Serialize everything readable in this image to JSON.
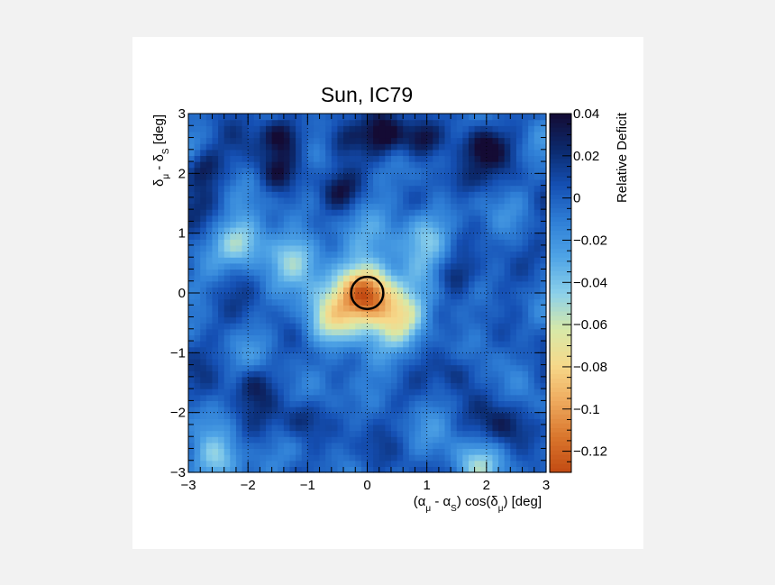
{
  "chart_data": {
    "type": "heatmap",
    "title": "Sun, IC79",
    "xlabel": "(α_μ - α_S) cos(δ_μ) [deg]",
    "ylabel": "δ_μ - δ_S [deg]",
    "zlabel": "Relative Deficit",
    "xlim": [
      -3,
      3
    ],
    "ylim": [
      -3,
      3
    ],
    "zlim": [
      -0.13,
      0.04
    ],
    "x_ticks": [
      -3,
      -2,
      -1,
      0,
      1,
      2,
      3
    ],
    "x_tick_labels": [
      "−3",
      "−2",
      "−1",
      "0",
      "1",
      "2",
      "3"
    ],
    "y_ticks": [
      -3,
      -2,
      -1,
      0,
      1,
      2,
      3
    ],
    "y_tick_labels": [
      "−3",
      "−2",
      "−1",
      "0",
      "1",
      "2",
      "3"
    ],
    "z_ticks": [
      0.04,
      0.02,
      0,
      -0.02,
      -0.04,
      -0.06,
      -0.08,
      -0.1,
      -0.12
    ],
    "z_tick_labels": [
      "0.04",
      "0.02",
      "0",
      "−0.02",
      "−0.04",
      "−0.06",
      "−0.08",
      "−0.1",
      "−0.12"
    ],
    "grid": true,
    "colormap": [
      "#140b34",
      "#0b2a6e",
      "#1550b4",
      "#2f7fd6",
      "#4fa4e6",
      "#8bd0ea",
      "#d7e9a8",
      "#f6d98a",
      "#eeaa5e",
      "#d9762d",
      "#c24a12"
    ],
    "deficit_center": [
      0,
      0
    ],
    "deficit_peak": -0.12,
    "circle": {
      "center": [
        0,
        0
      ],
      "radius_deg": 0.27
    },
    "background_level": 0.0,
    "dark_spots": [
      {
        "x": -2.75,
        "y": 2.1,
        "value": 0.035
      },
      {
        "x": -1.45,
        "y": 2.65,
        "value": 0.04
      },
      {
        "x": -1.5,
        "y": 2.0,
        "value": 0.03
      },
      {
        "x": -0.45,
        "y": 2.6,
        "value": 0.035
      },
      {
        "x": -0.45,
        "y": 1.7,
        "value": 0.03
      },
      {
        "x": 0.3,
        "y": 2.65,
        "value": 0.04
      },
      {
        "x": 0.9,
        "y": 2.6,
        "value": 0.04
      },
      {
        "x": 1.95,
        "y": 2.45,
        "value": 0.04
      },
      {
        "x": 1.6,
        "y": 1.9,
        "value": 0.03
      },
      {
        "x": 1.45,
        "y": 0.3,
        "value": 0.03
      },
      {
        "x": -1.9,
        "y": -1.5,
        "value": 0.025
      },
      {
        "x": -1.1,
        "y": -2.1,
        "value": 0.028
      },
      {
        "x": 1.5,
        "y": -1.3,
        "value": 0.025
      },
      {
        "x": 2.3,
        "y": -2.2,
        "value": 0.022
      }
    ],
    "light_spots": [
      {
        "x": -2.1,
        "y": 0.85,
        "value": -0.05
      },
      {
        "x": -2.5,
        "y": -2.8,
        "value": -0.045
      },
      {
        "x": -0.6,
        "y": -0.5,
        "value": -0.045
      },
      {
        "x": 0.6,
        "y": -0.4,
        "value": -0.045
      },
      {
        "x": 1.0,
        "y": 1.05,
        "value": -0.04
      },
      {
        "x": -1.2,
        "y": 0.6,
        "value": -0.04
      },
      {
        "x": 1.8,
        "y": -2.9,
        "value": -0.04
      }
    ]
  }
}
